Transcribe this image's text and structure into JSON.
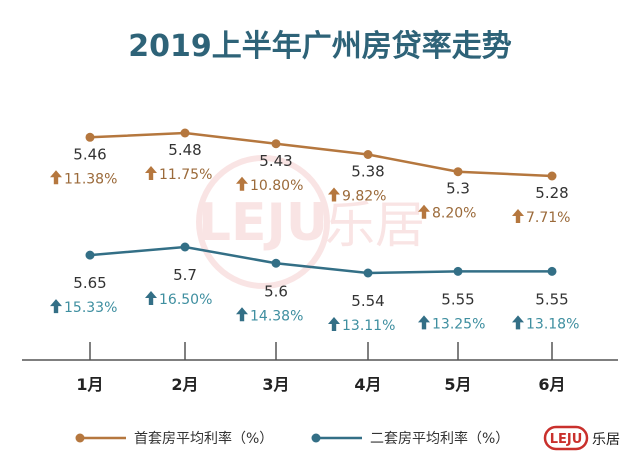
{
  "chart_data": {
    "type": "line",
    "title": "2019上半年广州房贷率走势",
    "categories": [
      "1月",
      "2月",
      "3月",
      "4月",
      "5月",
      "6月"
    ],
    "series": [
      {
        "name": "首套房平均利率（%）",
        "values": [
          5.46,
          5.48,
          5.43,
          5.38,
          5.3,
          5.28
        ],
        "labels": [
          "5.46",
          "5.48",
          "5.43",
          "5.38",
          "5.3",
          "5.28"
        ],
        "changes": [
          "11.38%",
          "11.75%",
          "10.80%",
          "9.82%",
          "8.20%",
          "7.71%"
        ],
        "color": "#b5773e"
      },
      {
        "name": "二套房平均利率（%）",
        "values": [
          5.65,
          5.7,
          5.6,
          5.54,
          5.55,
          5.55
        ],
        "labels": [
          "5.65",
          "5.7",
          "5.6",
          "5.54",
          "5.55",
          "5.55"
        ],
        "changes": [
          "15.33%",
          "16.50%",
          "14.38%",
          "13.11%",
          "13.25%",
          "13.18%"
        ],
        "color": "#336f86"
      }
    ],
    "axis_color": "#555555",
    "legend_position": "bottom"
  },
  "watermark": {
    "logo_text": "LEJU",
    "cn_text": "乐居"
  },
  "brand": {
    "logo_text": "LEJU",
    "cn_text": "乐居"
  }
}
